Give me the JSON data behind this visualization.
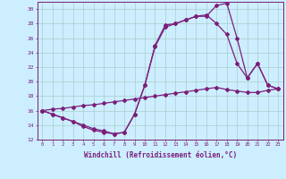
{
  "line1_x": [
    0,
    1,
    2,
    3,
    4,
    5,
    6,
    7,
    8,
    9,
    10,
    11,
    12,
    13,
    14,
    15,
    16,
    17,
    18,
    19,
    20,
    21,
    22,
    23
  ],
  "line1_y": [
    16.0,
    15.5,
    15.0,
    14.5,
    13.8,
    13.3,
    13.0,
    12.8,
    13.0,
    15.5,
    19.5,
    24.8,
    27.5,
    28.0,
    28.5,
    29.0,
    29.0,
    30.5,
    30.8,
    26.0,
    20.5,
    22.5,
    19.5,
    19.0
  ],
  "line2_x": [
    0,
    1,
    2,
    3,
    4,
    5,
    6,
    7,
    8,
    9,
    10,
    11,
    12,
    13,
    14,
    15,
    16,
    17,
    18,
    19,
    20,
    21,
    22,
    23
  ],
  "line2_y": [
    16.0,
    15.5,
    15.0,
    14.5,
    14.0,
    13.5,
    13.2,
    12.8,
    13.0,
    15.5,
    19.5,
    25.0,
    27.8,
    28.0,
    28.5,
    29.0,
    29.2,
    28.0,
    26.5,
    22.5,
    20.5,
    22.5,
    19.5,
    19.0
  ],
  "line3_x": [
    0,
    1,
    2,
    3,
    4,
    5,
    6,
    7,
    8,
    9,
    10,
    11,
    12,
    13,
    14,
    15,
    16,
    17,
    18,
    19,
    20,
    21,
    22,
    23
  ],
  "line3_y": [
    16.0,
    16.2,
    16.3,
    16.5,
    16.7,
    16.8,
    17.0,
    17.2,
    17.4,
    17.6,
    17.8,
    18.0,
    18.2,
    18.4,
    18.6,
    18.8,
    19.0,
    19.2,
    18.9,
    18.7,
    18.5,
    18.5,
    18.8,
    19.0
  ],
  "color": "#7b1e7b",
  "bg_color": "#cceeff",
  "grid_color": "#aacccc",
  "xlabel": "Windchill (Refroidissement éolien,°C)",
  "ylim": [
    12,
    31
  ],
  "xlim": [
    -0.5,
    23.5
  ],
  "yticks": [
    12,
    14,
    16,
    18,
    20,
    22,
    24,
    26,
    28,
    30
  ],
  "xticks": [
    0,
    1,
    2,
    3,
    4,
    5,
    6,
    7,
    8,
    9,
    10,
    11,
    12,
    13,
    14,
    15,
    16,
    17,
    18,
    19,
    20,
    21,
    22,
    23
  ]
}
